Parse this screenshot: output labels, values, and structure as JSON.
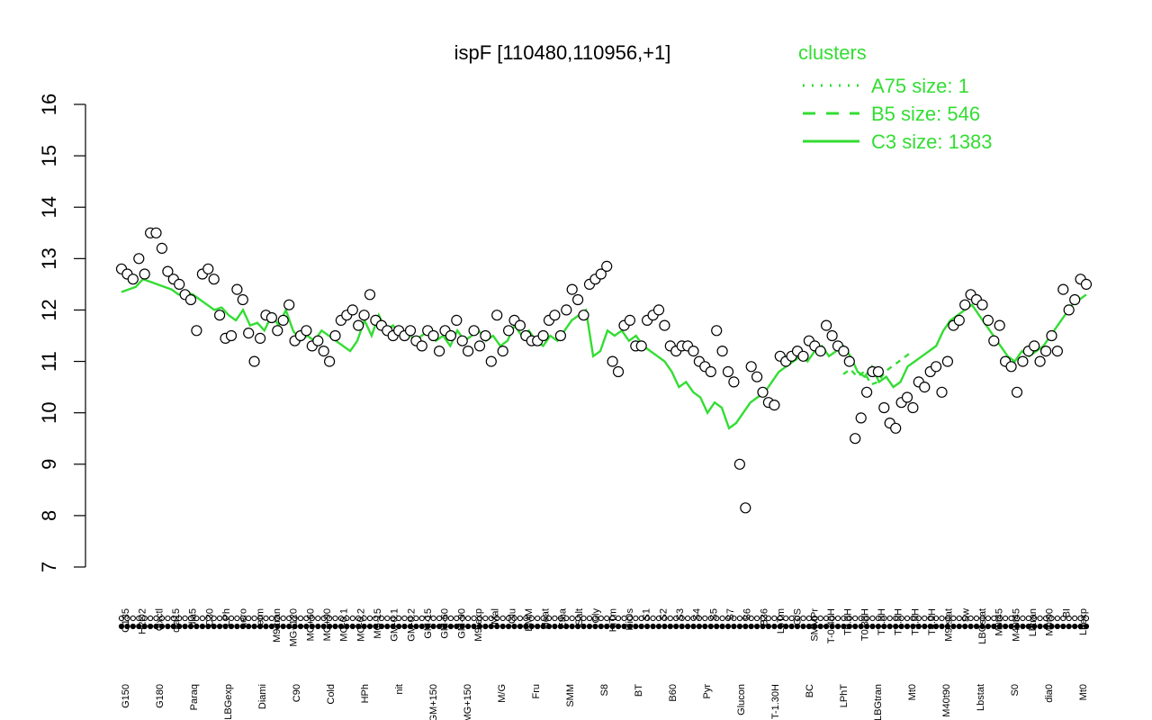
{
  "chart_data": {
    "type": "line",
    "title": "ispF [110480,110956,+1]",
    "xlabel": "",
    "ylabel": "",
    "ylim": [
      7,
      16
    ],
    "yticks": [
      7,
      8,
      9,
      10,
      11,
      12,
      13,
      14,
      15,
      16
    ],
    "grid": false,
    "legend": {
      "title": "clusters",
      "placement": "top-right",
      "entries": [
        {
          "label": "A75 size: 1",
          "style": "dotted"
        },
        {
          "label": "B5 size: 546",
          "style": "dashed"
        },
        {
          "label": "C3 size: 1383",
          "style": "solid"
        }
      ]
    },
    "colors": {
      "line": "#33dd33",
      "legend": "#33dd33",
      "points": "#000000",
      "point_fill": "#ffffff"
    },
    "x_labels_upper": [
      "G135",
      "H2O2",
      "Oxctl",
      "dia15",
      "dia5",
      "C30",
      "LPh",
      "aero",
      "ferm",
      "M9-tran",
      "MG+120",
      "MG+60",
      "MG+90",
      "MG-0.1",
      "MG-0.2",
      "MG-15",
      "GM-0.1",
      "GM-0.2",
      "GM-15",
      "GM-60",
      "GM-90",
      "M9-exp",
      "Mal",
      "Glu",
      "BMM",
      "Heat",
      "Etha",
      "Salt",
      "Gly",
      "HiTm",
      "HiOs",
      "S1",
      "S2",
      "S3",
      "S4",
      "S5",
      "S7",
      "S6",
      "B36",
      "LoTm",
      "G/S",
      "SMMPr",
      "T-0.40H",
      "T0.0H",
      "T0.30H",
      "T1.0H",
      "T2.0H",
      "T3.0H",
      "T4.0H",
      "M9-stat",
      "Sw",
      "LBGstat",
      "M0t45",
      "M40t45",
      "Lbtran",
      "M0t90",
      "BI",
      "Lbexp"
    ],
    "x_labels_lower": [
      "G150",
      "G180",
      "Paraq",
      "LBGexp",
      "Diami",
      "C90",
      "Cold",
      "HPh",
      "nit",
      "GM+150",
      "MG+150",
      "M/G",
      "Fru",
      "SMM",
      "S8",
      "BT",
      "B60",
      "Pyr",
      "Glucon",
      "T-1.30H",
      "BC",
      "LPhT",
      "LBGtran",
      "Mt0",
      "M40t90",
      "Lbstat",
      "S0",
      "dia0",
      "Mt0"
    ],
    "series": [
      {
        "name": "C3 size: 1383",
        "values": [
          12.35,
          12.4,
          12.45,
          12.6,
          12.55,
          12.5,
          12.45,
          12.4,
          12.3,
          12.35,
          12.3,
          12.2,
          12.1,
          12.0,
          12.05,
          11.9,
          11.8,
          12.0,
          11.7,
          11.75,
          11.6,
          11.9,
          11.7,
          12.0,
          11.6,
          11.4,
          11.5,
          11.4,
          11.6,
          11.5,
          11.4,
          11.3,
          11.2,
          11.4,
          11.8,
          11.5,
          11.9,
          11.6,
          11.7,
          11.5,
          11.6,
          11.4,
          11.5,
          11.6,
          11.4,
          11.5,
          11.3,
          11.6,
          11.4,
          11.5,
          11.6,
          11.4,
          11.5,
          11.3,
          11.4,
          11.7,
          11.5,
          11.6,
          11.4,
          11.3,
          11.5,
          11.4,
          11.6,
          11.8,
          11.9,
          12.0,
          11.1,
          11.2,
          11.6,
          11.5,
          11.6,
          11.4,
          11.5,
          11.3,
          11.2,
          11.1,
          11.0,
          10.8,
          10.5,
          10.6,
          10.4,
          10.3,
          10.0,
          10.2,
          10.1,
          9.7,
          9.8,
          10.0,
          10.2,
          10.3,
          10.4,
          10.6,
          10.8,
          10.9,
          11.0,
          11.1,
          11.0,
          11.2,
          11.3,
          11.1,
          11.2,
          11.3,
          11.1,
          10.8,
          10.7,
          10.9,
          10.6,
          10.7,
          10.5,
          10.6,
          10.9,
          11.0,
          11.1,
          11.2,
          11.3,
          11.6,
          11.8,
          11.9,
          12.0,
          12.1,
          11.9,
          11.7,
          11.5,
          11.3,
          11.1,
          11.0,
          11.2,
          11.1,
          11.2,
          11.3,
          11.5,
          11.7,
          11.9,
          12.1,
          12.2,
          12.3
        ]
      },
      {
        "name": "B5 size: 546",
        "values": [
          null,
          null,
          null,
          null,
          null,
          null,
          null,
          null,
          null,
          null,
          null,
          null,
          null,
          null,
          null,
          null,
          null,
          null,
          null,
          null,
          null,
          null,
          null,
          null,
          null,
          null,
          null,
          null,
          null,
          null,
          null,
          null,
          null,
          null,
          null,
          null,
          null,
          null,
          null,
          null,
          null,
          null,
          null,
          null,
          null,
          null,
          null,
          null,
          null,
          null,
          null,
          null,
          null,
          null,
          null,
          null,
          null,
          null,
          null,
          null,
          null,
          null,
          null,
          null,
          null,
          null,
          null,
          null,
          null,
          null,
          null,
          null,
          null,
          null,
          null,
          null,
          null,
          null,
          null,
          null,
          null,
          null,
          null,
          null,
          null,
          null,
          null,
          null,
          null,
          null,
          null,
          null,
          null,
          null,
          null,
          null,
          null,
          null,
          null,
          null,
          null,
          null,
          null,
          null,
          10.75,
          10.85,
          10.7,
          10.8,
          10.55,
          10.6,
          10.8,
          10.9,
          11.0,
          11.1,
          11.2,
          null,
          null,
          null,
          null,
          null,
          null,
          null,
          null,
          null,
          null,
          null,
          null,
          null,
          null,
          null,
          null,
          null,
          null,
          null,
          null,
          null,
          null,
          null,
          null,
          null
        ]
      },
      {
        "name": "points",
        "values": [
          12.8,
          12.7,
          12.6,
          13.0,
          12.7,
          13.5,
          13.5,
          13.2,
          12.75,
          12.6,
          12.5,
          12.3,
          12.2,
          11.6,
          12.7,
          12.8,
          12.6,
          11.9,
          11.45,
          11.5,
          12.4,
          12.2,
          11.55,
          11.0,
          11.45,
          11.9,
          11.85,
          11.6,
          11.8,
          12.1,
          11.4,
          11.5,
          11.6,
          11.3,
          11.4,
          11.2,
          11.0,
          11.5,
          11.8,
          11.9,
          12.0,
          11.7,
          11.9,
          12.3,
          11.8,
          11.7,
          11.6,
          11.5,
          11.6,
          11.5,
          11.6,
          11.4,
          11.3,
          11.6,
          11.5,
          11.2,
          11.6,
          11.5,
          11.8,
          11.4,
          11.2,
          11.6,
          11.3,
          11.5,
          11.0,
          11.9,
          11.2,
          11.6,
          11.8,
          11.7,
          11.5,
          11.4,
          11.4,
          11.5,
          11.8,
          11.9,
          11.5,
          12.0,
          12.4,
          12.2,
          11.9,
          12.5,
          12.6,
          12.7,
          12.85,
          11.0,
          10.8,
          11.7,
          11.8,
          11.3,
          11.3,
          11.8,
          11.9,
          12.0,
          11.7,
          11.3,
          11.2,
          11.3,
          11.3,
          11.2,
          11.0,
          10.9,
          10.8,
          11.6,
          11.2,
          10.8,
          10.6,
          9.0,
          8.15,
          10.9,
          10.7,
          10.4,
          10.2,
          10.15,
          11.1,
          11.0,
          11.1,
          11.2,
          11.1,
          11.4,
          11.3,
          11.2,
          11.7,
          11.5,
          11.3,
          11.2,
          11.0,
          9.5,
          9.9,
          10.4,
          10.8,
          10.8,
          10.1,
          9.8,
          9.7,
          10.2,
          10.3,
          10.1,
          10.6,
          10.5,
          10.8,
          10.9,
          10.4,
          11.0,
          11.7,
          11.8,
          12.1,
          12.3,
          12.2,
          12.1,
          11.8,
          11.4,
          11.7,
          11.0,
          10.9,
          10.4,
          11.0,
          11.2,
          11.3,
          11.0,
          11.2,
          11.5,
          11.2,
          12.4,
          12.0,
          12.2,
          12.6,
          12.5
        ]
      }
    ]
  }
}
